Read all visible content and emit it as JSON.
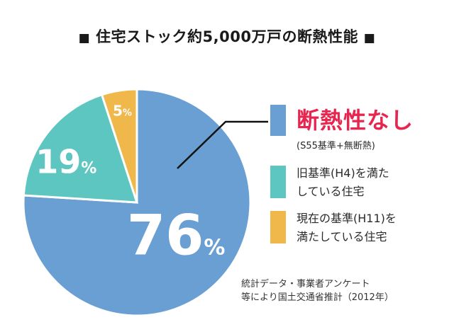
{
  "title": {
    "bullet_left": "■",
    "text": "住宅ストック約5,000万戸の断熱性能",
    "bullet_right": "■"
  },
  "chart_data": {
    "type": "pie",
    "title": "住宅ストック約5,000万戸の断熱性能",
    "slices": [
      {
        "key": "none",
        "value": 76,
        "label_num": "76",
        "label_unit": "%",
        "color": "#6a9fd4"
      },
      {
        "key": "old",
        "value": 19,
        "label_num": "19",
        "label_unit": "%",
        "color": "#5ec6c0"
      },
      {
        "key": "current",
        "value": 5,
        "label_num": "5",
        "label_unit": "%",
        "color": "#f0b84a"
      }
    ],
    "legend": [
      {
        "key": "none",
        "color": "#6a9fd4",
        "label": "断熱性なし",
        "sublabel": "(S55基準+無断熱)"
      },
      {
        "key": "old",
        "color": "#5ec6c0",
        "line1": "旧基準(H4)を満た",
        "line2": "している住宅"
      },
      {
        "key": "current",
        "color": "#f0b84a",
        "line1": "現在の基準(H11)を",
        "line2": "満たしている住宅"
      }
    ]
  },
  "source": {
    "line1": "統計データ・事業者アンケート",
    "line2": "等により国土交通省推計（2012年）"
  }
}
